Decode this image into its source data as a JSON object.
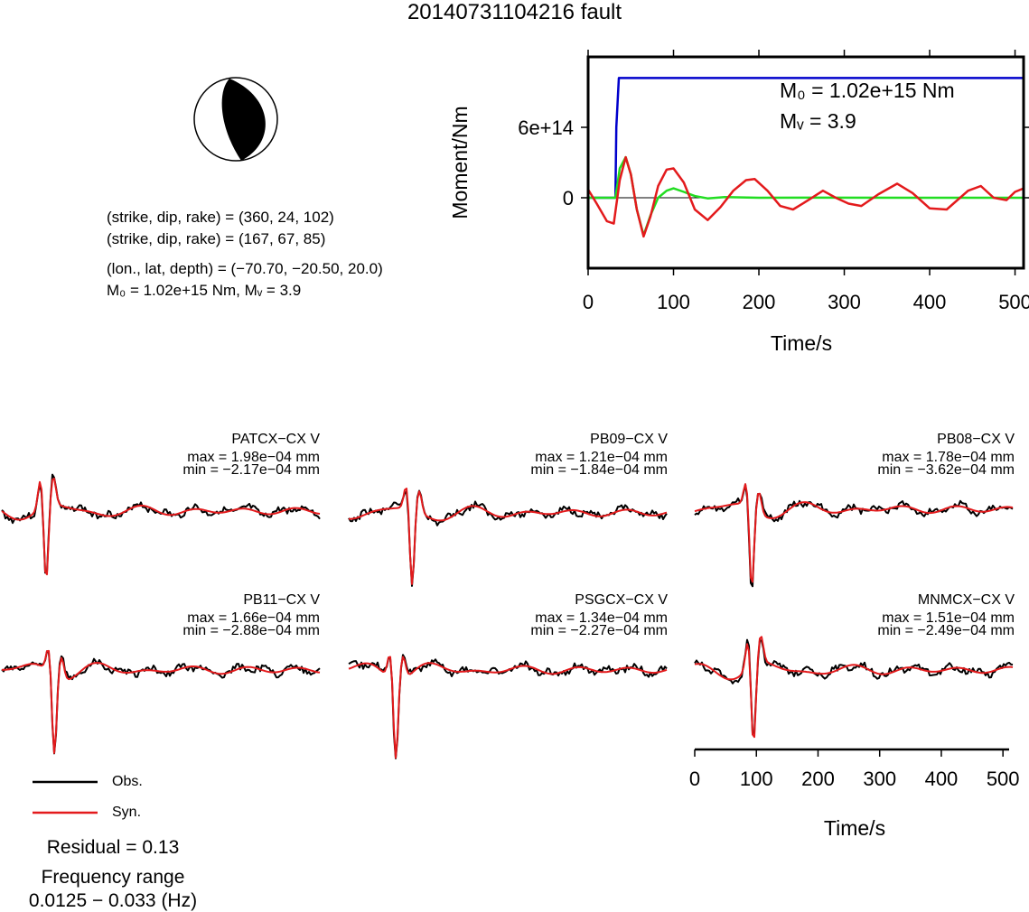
{
  "title": "20140731104216 fault",
  "mechanism": {
    "line1": "(strike, dip, rake) = (360, 24, 102)",
    "line2": "(strike, dip, rake) = (167, 67, 85)",
    "line3": "(lon., lat, depth) = (−70.70, −20.50, 20.0)",
    "line4": "M₀ = 1.02e+15 Nm, Mᵥ = 3.9"
  },
  "moment_plot": {
    "m0_label": "M₀ = 1.02e+15 Nm",
    "mw_label": "Mᵥ = 3.9",
    "ylabel": "Moment/Nm",
    "xlabel": "Time/s",
    "yticks": [
      "0",
      "6e+14"
    ],
    "xticks": [
      "0",
      "100",
      "200",
      "300",
      "400",
      "500"
    ]
  },
  "stations": [
    {
      "name": "PATCX−CX V",
      "max": "max = 1.98e−04 mm",
      "min": "min = −2.17e−04 mm"
    },
    {
      "name": "PB09−CX V",
      "max": "max = 1.21e−04 mm",
      "min": "min = −1.84e−04 mm"
    },
    {
      "name": "PB08−CX V",
      "max": "max = 1.78e−04 mm",
      "min": "min = −3.62e−04 mm"
    },
    {
      "name": "PB11−CX V",
      "max": "max = 1.66e−04 mm",
      "min": "min = −2.88e−04 mm"
    },
    {
      "name": "PSGCX−CX V",
      "max": "max = 1.34e−04 mm",
      "min": "min = −2.27e−04 mm"
    },
    {
      "name": "MNMCX−CX V",
      "max": "max = 1.51e−04 mm",
      "min": "min = −2.49e−04 mm"
    }
  ],
  "wave_axis": {
    "xlabel": "Time/s",
    "xticks": [
      "0",
      "100",
      "200",
      "300",
      "400",
      "500"
    ]
  },
  "legend": {
    "obs": "Obs.",
    "syn": "Syn."
  },
  "residual": "Residual = 0.13",
  "freq_label": "Frequency range",
  "freq_value": "0.0125 − 0.033 (Hz)",
  "colors": {
    "obs": "#000000",
    "syn": "#e31a1c",
    "moment_cum": "#0000cc",
    "moment_rate": "#22dd22"
  },
  "chart_data": {
    "type": "line",
    "title": "",
    "xlabel": "Time/s",
    "ylabel": "Moment/Nm",
    "xlim": [
      0,
      510
    ],
    "ylim": [
      -600000000000000.0,
      1200000000000000.0
    ],
    "series": [
      {
        "name": "",
        "color": "#0000cc",
        "x": [
          0,
          32,
          33,
          36,
          510
        ],
        "y": [
          0,
          0,
          600000000000000.0,
          1020000000000000.0,
          1020000000000000.0
        ]
      },
      {
        "name": "",
        "color": "#22dd22",
        "x": [
          0,
          32,
          37,
          44,
          50,
          57,
          65,
          73,
          82,
          92,
          100,
          112,
          125,
          140,
          160,
          200,
          260,
          510
        ],
        "y": [
          0,
          0,
          250000000000000.0,
          345000000000000.0,
          200000000000000.0,
          -100000000000000.0,
          -320000000000000.0,
          -150000000000000.0,
          0,
          60000000000000.0,
          80000000000000.0,
          50000000000000.0,
          15000000000000.0,
          -5000000000000.0,
          5000000000000.0,
          0,
          1000000000000.0,
          0
        ]
      },
      {
        "name": "",
        "color": "#e31a1c",
        "x": [
          0,
          10,
          22,
          30,
          37,
          44,
          50,
          57,
          65,
          73,
          82,
          92,
          100,
          112,
          125,
          140,
          155,
          170,
          185,
          195,
          210,
          225,
          240,
          258,
          275,
          290,
          305,
          320,
          340,
          362,
          380,
          400,
          420,
          445,
          460,
          475,
          490,
          500,
          510
        ],
        "y": [
          70000000000000.0,
          -50000000000000.0,
          -200000000000000.0,
          -220000000000000.0,
          150000000000000.0,
          345000000000000.0,
          200000000000000.0,
          -100000000000000.0,
          -330000000000000.0,
          -160000000000000.0,
          100000000000000.0,
          240000000000000.0,
          250000000000000.0,
          130000000000000.0,
          -100000000000000.0,
          -190000000000000.0,
          -80000000000000.0,
          60000000000000.0,
          150000000000000.0,
          160000000000000.0,
          60000000000000.0,
          -70000000000000.0,
          -100000000000000.0,
          -20000000000000.0,
          60000000000000.0,
          0.0,
          -50000000000000.0,
          -70000000000000.0,
          30000000000000.0,
          120000000000000.0,
          40000000000000.0,
          -90000000000000.0,
          -100000000000000.0,
          60000000000000.0,
          100000000000000.0,
          0.0,
          -20000000000000.0,
          50000000000000.0,
          80000000000000.0
        ]
      }
    ]
  }
}
